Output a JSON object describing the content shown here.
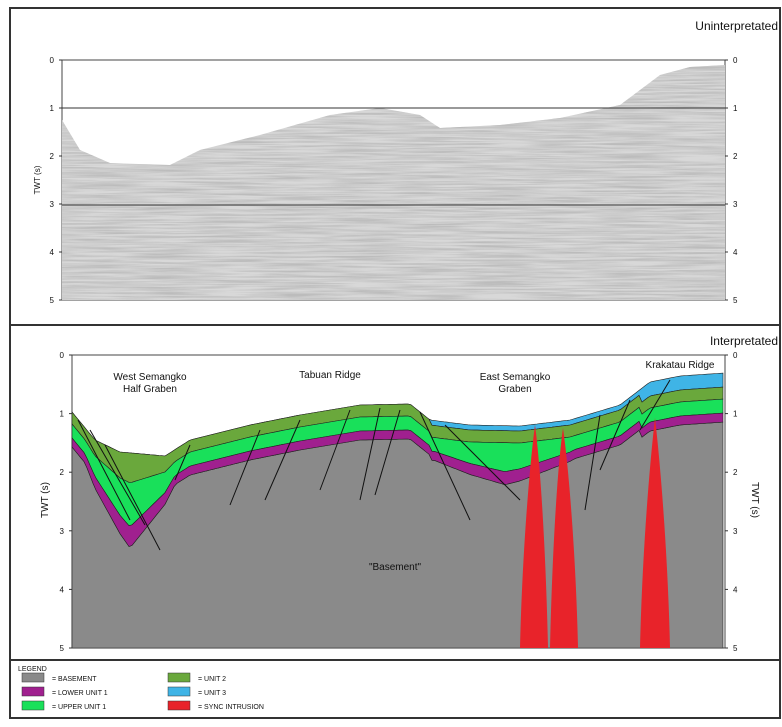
{
  "panels": [
    {
      "label": "Uninterpretated",
      "axis_title": "TWT (s)",
      "axis_ticks": [
        0,
        1,
        2,
        3,
        4,
        5
      ]
    },
    {
      "label": "Interpretated",
      "axis_title": "TWT (s)",
      "axis_ticks": [
        0,
        1,
        2,
        3,
        4,
        5
      ],
      "annotations": [
        {
          "lines": [
            "West Semangko",
            "Half Graben"
          ]
        },
        {
          "lines": [
            "Tabuan Ridge"
          ]
        },
        {
          "lines": [
            "East Semangko",
            "Graben"
          ]
        },
        {
          "lines": [
            "Krakatau Ridge"
          ]
        },
        {
          "lines": [
            "\"Basement\""
          ]
        }
      ]
    }
  ],
  "legend": {
    "title": "LEGEND",
    "items": [
      {
        "label": "= BASEMENT",
        "color": "#8a8a8a"
      },
      {
        "label": "= LOWER UNIT 1",
        "color": "#a0208f"
      },
      {
        "label": "= UPPER UNIT 1",
        "color": "#19e05a"
      },
      {
        "label": "= UNIT 2",
        "color": "#6aa83c"
      },
      {
        "label": "= UNIT 3",
        "color": "#3fb4e6"
      },
      {
        "label": "= SYNC INTRUSION",
        "color": "#e8232a"
      }
    ]
  }
}
